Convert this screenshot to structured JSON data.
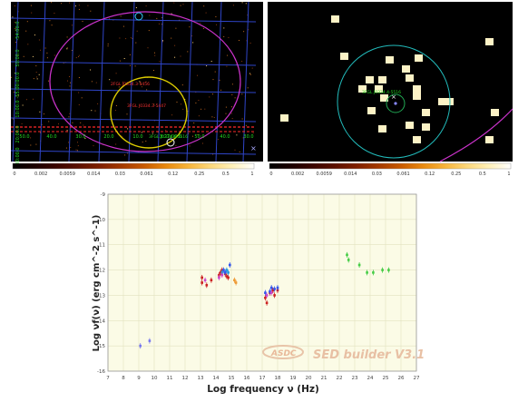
{
  "left_map": {
    "ra_labels": [
      "50.0",
      "40.0",
      "30.0",
      "20.0",
      "10.0",
      "3:27:00.0",
      "50.0",
      "40.0",
      "30.0"
    ],
    "dec_labels": [
      "-54:00:0",
      "50:00.0",
      "-55:00:00.0",
      "10:00.0",
      "20:00.0",
      "30:00.0"
    ],
    "source_label_1": "3FGL J0334.4-5516",
    "source_label_2": "3FGL J0334.3-5447",
    "source_label_3": "2FGL J0334.3-5456",
    "cursor_label": "×"
  },
  "right_map": {
    "source_label": "3FGL J0334.4-5516"
  },
  "colorbar_left": {
    "ticks": [
      "0",
      "0.002",
      "0.0059",
      "0.014",
      "0.03",
      "0.061",
      "0.12",
      "0.25",
      "0.5",
      "1"
    ],
    "colors": [
      "#000000",
      "#1a0000",
      "#3a0500",
      "#5c1000",
      "#802000",
      "#a53a00",
      "#c95a00",
      "#e88a10",
      "#f7b43a",
      "#fcd77a",
      "#fff0b8",
      "#ffffff"
    ]
  },
  "colorbar_right": {
    "ticks": [
      "0",
      "0.002",
      "0.0059",
      "0.014",
      "0.03",
      "0.061",
      "0.12",
      "0.25",
      "0.5",
      "1"
    ],
    "colors": [
      "#000000",
      "#1a0000",
      "#3a0500",
      "#5c1000",
      "#802000",
      "#a53a00",
      "#c95a00",
      "#e88a10",
      "#f7b43a",
      "#fcd77a",
      "#fff0b8",
      "#ffffff"
    ]
  },
  "chart_data": {
    "type": "scatter",
    "xlabel": "Log frequency ν (Hz)",
    "ylabel": "Log νf(ν) (erg cm^-2 s^-1)",
    "xlim": [
      7,
      27
    ],
    "ylim": [
      -16,
      -9
    ],
    "xticks": [
      7,
      8,
      9,
      10,
      11,
      12,
      13,
      14,
      15,
      16,
      17,
      18,
      19,
      20,
      21,
      22,
      23,
      24,
      25,
      26,
      27
    ],
    "yticks": [
      -16,
      -15,
      -14,
      -13,
      -12,
      -11,
      -10,
      -9
    ],
    "background": "#fbfbe6",
    "grid_color": "#e2e2c0",
    "watermark_left": "ASDC",
    "watermark_right": "SED builder V3.1",
    "series": [
      {
        "color": "#7777ee",
        "points": [
          [
            9.1,
            -15.0
          ],
          [
            9.7,
            -14.8
          ]
        ]
      },
      {
        "color": "#cc2222",
        "points": [
          [
            13.1,
            -12.3
          ],
          [
            13.1,
            -12.5
          ],
          [
            13.4,
            -12.6
          ],
          [
            13.7,
            -12.4
          ],
          [
            14.2,
            -12.2
          ],
          [
            14.3,
            -12.1
          ],
          [
            14.4,
            -12.0
          ],
          [
            14.6,
            -12.15
          ],
          [
            14.7,
            -12.25
          ],
          [
            14.8,
            -12.3
          ],
          [
            17.2,
            -13.1
          ],
          [
            17.3,
            -13.3
          ],
          [
            17.5,
            -12.9
          ],
          [
            17.7,
            -12.8
          ],
          [
            17.8,
            -13.0
          ],
          [
            18.0,
            -12.8
          ]
        ]
      },
      {
        "color": "#3355ee",
        "points": [
          [
            14.5,
            -12.0
          ],
          [
            14.6,
            -12.1
          ],
          [
            14.9,
            -11.8
          ],
          [
            17.2,
            -12.9
          ],
          [
            17.5,
            -12.85
          ],
          [
            17.6,
            -12.7
          ],
          [
            17.8,
            -12.75
          ],
          [
            18.0,
            -12.7
          ]
        ]
      },
      {
        "color": "#2299dd",
        "points": [
          [
            14.4,
            -12.1
          ],
          [
            14.7,
            -12.0
          ],
          [
            14.8,
            -12.1
          ]
        ]
      },
      {
        "color": "#cc44cc",
        "points": [
          [
            13.3,
            -12.4
          ],
          [
            14.2,
            -12.3
          ],
          [
            14.4,
            -12.2
          ],
          [
            17.3,
            -13.0
          ],
          [
            17.6,
            -12.9
          ]
        ]
      },
      {
        "color": "#ee9933",
        "points": [
          [
            15.2,
            -12.4
          ],
          [
            15.3,
            -12.5
          ]
        ]
      },
      {
        "color": "#44cc44",
        "points": [
          [
            22.5,
            -11.4
          ],
          [
            22.6,
            -11.6
          ],
          [
            23.3,
            -11.8
          ],
          [
            23.8,
            -12.1
          ],
          [
            24.2,
            -12.1
          ],
          [
            24.8,
            -12.0
          ],
          [
            25.2,
            -12.0
          ]
        ]
      }
    ]
  }
}
